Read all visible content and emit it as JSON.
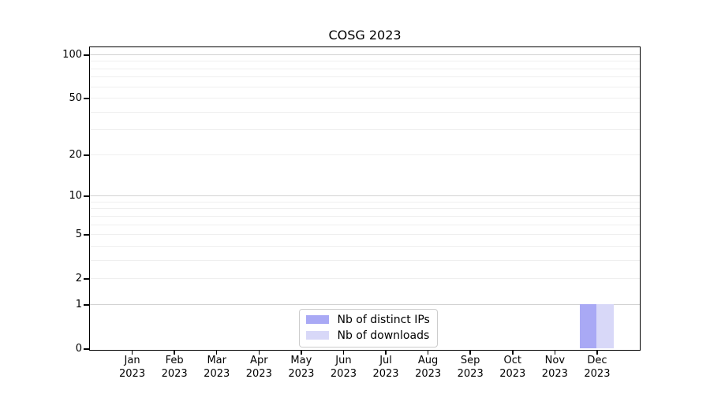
{
  "chart_data": {
    "type": "bar",
    "title": "COSG 2023",
    "categories": [
      "Jan 2023",
      "Feb 2023",
      "Mar 2023",
      "Apr 2023",
      "May 2023",
      "Jun 2023",
      "Jul 2023",
      "Aug 2023",
      "Sep 2023",
      "Oct 2023",
      "Nov 2023",
      "Dec 2023"
    ],
    "series": [
      {
        "name": "Nb of distinct IPs",
        "color": "#a9a9f5",
        "values": [
          0,
          0,
          0,
          0,
          0,
          0,
          0,
          0,
          0,
          0,
          0,
          1
        ]
      },
      {
        "name": "Nb of downloads",
        "color": "#d8d8f8",
        "values": [
          0,
          0,
          0,
          0,
          0,
          0,
          0,
          0,
          0,
          0,
          0,
          1
        ]
      }
    ],
    "xlabel": "",
    "ylabel": "",
    "yscale": "log1p",
    "ylim": [
      0,
      113
    ],
    "y_tick_labels": [
      0,
      1,
      2,
      5,
      10,
      20,
      50,
      100
    ],
    "y_major_gridlines": [
      1,
      10,
      100
    ],
    "y_minor_gridlines": [
      2,
      3,
      4,
      5,
      6,
      7,
      8,
      9,
      20,
      30,
      40,
      50,
      60,
      70,
      80,
      90
    ],
    "grid": true,
    "legend": {
      "position": "lower center",
      "entries": [
        "Nb of distinct IPs",
        "Nb of downloads"
      ]
    },
    "colors": {
      "major_grid": "#d2d2d2",
      "minor_grid": "#efefef",
      "spine": "#000000",
      "text": "#000000",
      "legend_border": "#cccccc",
      "background": "#ffffff"
    }
  }
}
